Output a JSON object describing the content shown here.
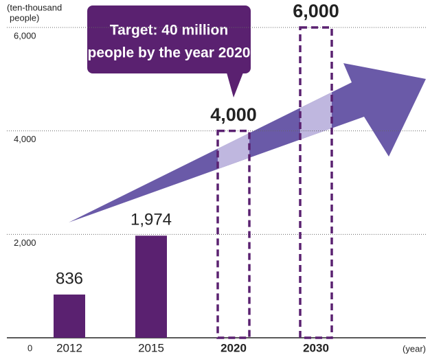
{
  "chart_data": {
    "type": "bar",
    "categories": [
      "2012",
      "2015",
      "2020",
      "2030"
    ],
    "values": [
      836,
      1974,
      4000,
      6000
    ],
    "value_labels": [
      "836",
      "1,974",
      "4,000",
      "6,000"
    ],
    "styles": [
      "solid",
      "solid",
      "dashed",
      "dashed"
    ],
    "color": "#5a2170",
    "ylim": [
      0,
      6000
    ],
    "yticks": [
      0,
      {
        "value": 2000,
        "label": "2,000"
      },
      {
        "value": 4000,
        "label": "4,000"
      },
      {
        "value": 6000,
        "label": "6,000"
      }
    ],
    "grid": true,
    "y_label": [
      "(ten-thousand",
      "people)"
    ],
    "x_label": "(year)",
    "annotation": [
      "Target: 40 million",
      "people by the year 2020"
    ]
  }
}
